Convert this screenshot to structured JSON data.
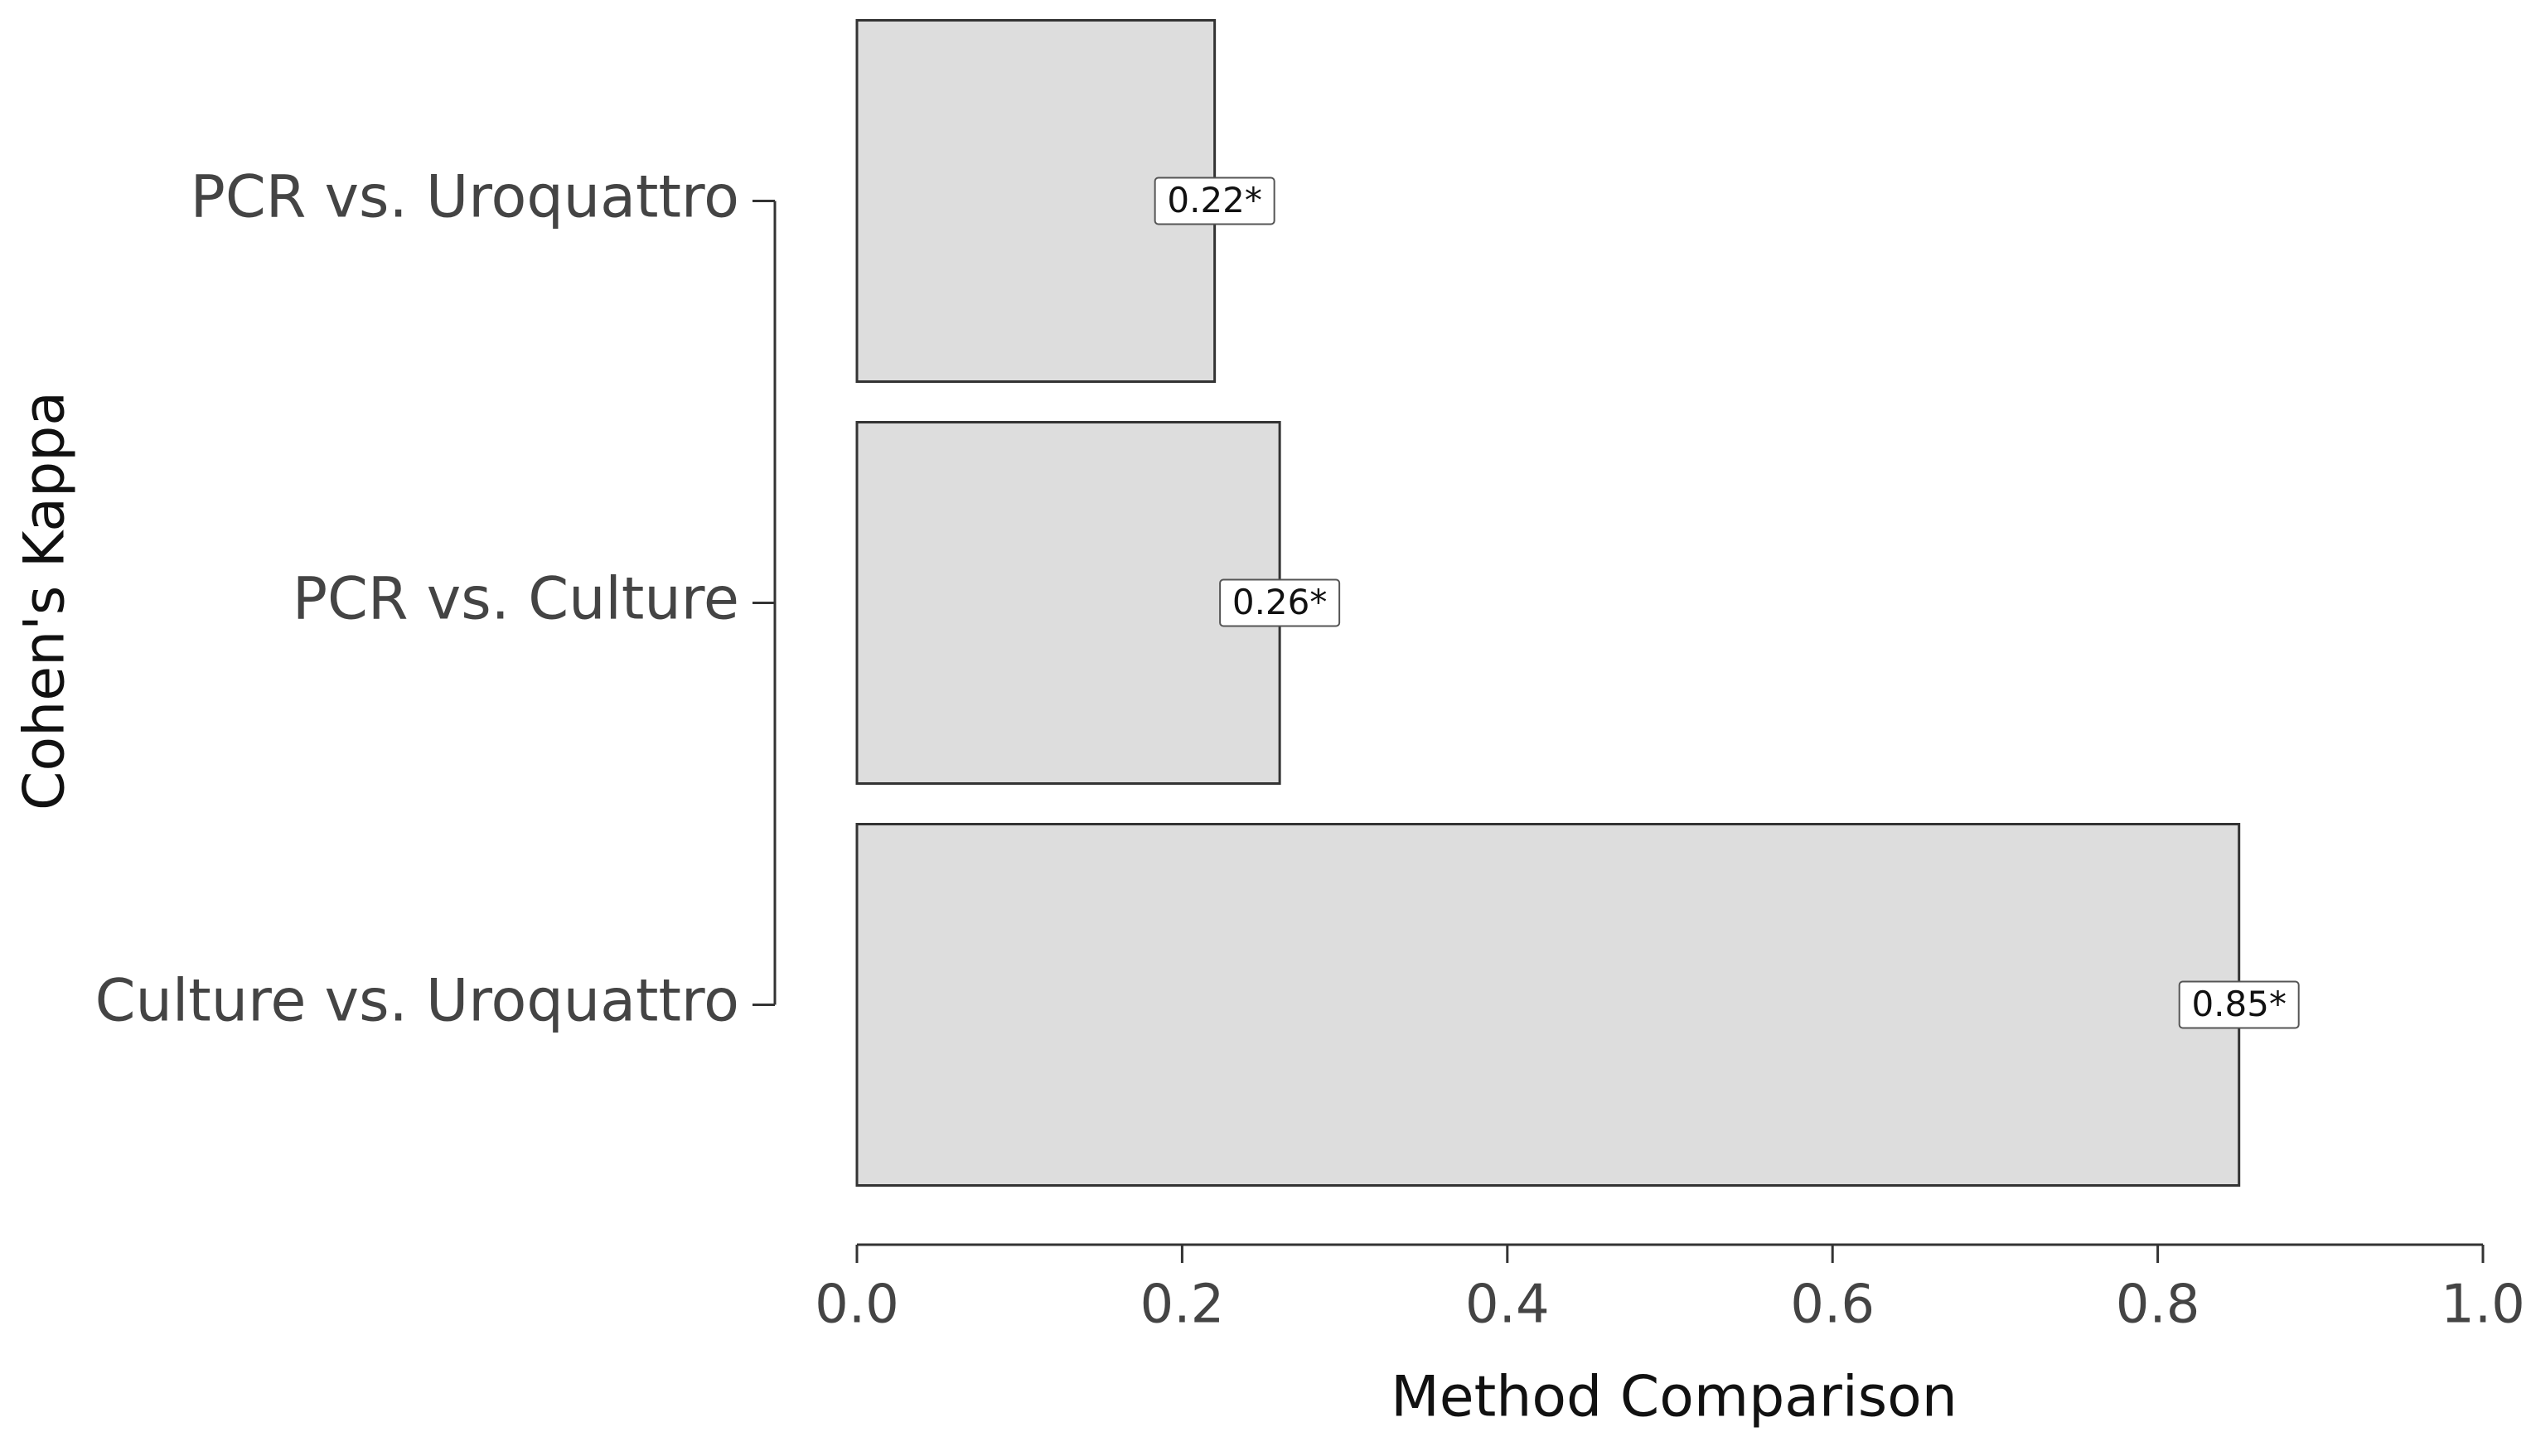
{
  "chart_data": {
    "type": "bar",
    "orientation": "horizontal",
    "xlabel": "Method Comparison",
    "ylabel": "Cohen's Kappa",
    "categories": [
      "PCR vs. Uroquattro",
      "PCR vs. Culture",
      "Culture vs. Uroquattro"
    ],
    "values": [
      0.22,
      0.26,
      0.85
    ],
    "value_labels": [
      "0.22*",
      "0.26*",
      "0.85*"
    ],
    "color": "#dddddd",
    "xlim": [
      0,
      1
    ],
    "xticks": [
      {
        "value": 0,
        "label": "0.0"
      },
      0.2,
      0.4,
      0.6,
      0.8,
      {
        "value": 1,
        "label": "1.0"
      }
    ]
  }
}
